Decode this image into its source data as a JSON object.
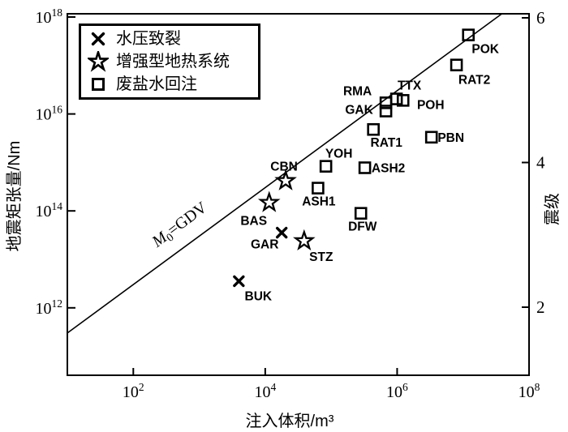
{
  "figure": {
    "y_axis_title": "地震矩张量/Nm",
    "x_axis_title": "注入体积/m³",
    "right_axis_title": "震级",
    "line_label": {
      "var": "M",
      "sub": "0",
      "rest": "=GDV"
    }
  },
  "legend": {
    "items": [
      {
        "marker": "cross",
        "label": "水压致裂"
      },
      {
        "marker": "star",
        "label": "增强型地热系统"
      },
      {
        "marker": "square",
        "label": "废盐水回注"
      }
    ]
  },
  "chart_data": {
    "type": "scatter",
    "title": "",
    "xlabel": "注入体积/m³",
    "ylabel": "地震矩张量/Nm",
    "right_ylabel": "震级",
    "x_axis": {
      "scale": "log",
      "tick_exponents": [
        2,
        4,
        6,
        8
      ],
      "range_exponents": [
        1,
        8
      ]
    },
    "y_axis": {
      "scale": "log",
      "tick_exponents": [
        18,
        16,
        14,
        12
      ],
      "range_exponents": [
        10.6,
        18.07
      ]
    },
    "right_axis": {
      "ticks": [
        6,
        4,
        2
      ]
    },
    "reference_line": {
      "label": "M0=GDV",
      "slope": 1,
      "intercept_log10": 10.48
    },
    "series": [
      {
        "name": "水压致裂",
        "marker": "cross",
        "points": [
          {
            "label": "GAR",
            "log_v": 4.25,
            "log_m0": 13.55,
            "label_dx": -21,
            "label_dy": 14
          },
          {
            "label": "BUK",
            "log_v": 3.6,
            "log_m0": 12.55,
            "label_dx": 24,
            "label_dy": 18
          }
        ]
      },
      {
        "name": "增强型地热系统",
        "marker": "star",
        "points": [
          {
            "label": "CBN",
            "log_v": 4.31,
            "log_m0": 14.62,
            "label_dx": -2,
            "label_dy": -18
          },
          {
            "label": "BAS",
            "log_v": 4.06,
            "log_m0": 14.17,
            "label_dx": -19,
            "label_dy": 22
          },
          {
            "label": "STZ",
            "log_v": 4.59,
            "log_m0": 13.38,
            "label_dx": 21,
            "label_dy": 19
          }
        ]
      },
      {
        "name": "废盐水回注",
        "marker": "square",
        "points": [
          {
            "label": "POK",
            "log_v": 7.08,
            "log_m0": 17.63,
            "label_dx": 21,
            "label_dy": 17
          },
          {
            "label": "RAT2",
            "log_v": 6.9,
            "log_m0": 17.01,
            "label_dx": 22,
            "label_dy": 18
          },
          {
            "label": "TTX",
            "log_v": 5.99,
            "log_m0": 16.31,
            "label_dx": 16,
            "label_dy": -17
          },
          {
            "label": "POH",
            "log_v": 6.09,
            "log_m0": 16.28,
            "label_dx": 34,
            "label_dy": 5
          },
          {
            "label": "RMA",
            "log_v": 5.83,
            "log_m0": 16.23,
            "label_dx": -35,
            "label_dy": -15
          },
          {
            "label": "GAK",
            "log_v": 5.83,
            "log_m0": 16.06,
            "label_dx": -33,
            "label_dy": -2
          },
          {
            "label": "RAT1",
            "log_v": 5.64,
            "log_m0": 15.68,
            "label_dx": 16,
            "label_dy": 16
          },
          {
            "label": "PBN",
            "log_v": 6.52,
            "log_m0": 15.52,
            "label_dx": 24,
            "label_dy": 0
          },
          {
            "label": "YOH",
            "log_v": 4.92,
            "log_m0": 14.92,
            "label_dx": 16,
            "label_dy": -16
          },
          {
            "label": "ASH2",
            "log_v": 5.51,
            "log_m0": 14.89,
            "label_dx": 29,
            "label_dy": 0
          },
          {
            "label": "ASH1",
            "log_v": 4.8,
            "log_m0": 14.47,
            "label_dx": 1,
            "label_dy": 16
          },
          {
            "label": "DFW",
            "log_v": 5.45,
            "log_m0": 13.95,
            "label_dx": 2,
            "label_dy": 16
          }
        ]
      }
    ],
    "legend_position": "upper-left",
    "grid": false,
    "colors": {
      "foreground": "#000000",
      "background": "#ffffff"
    }
  }
}
